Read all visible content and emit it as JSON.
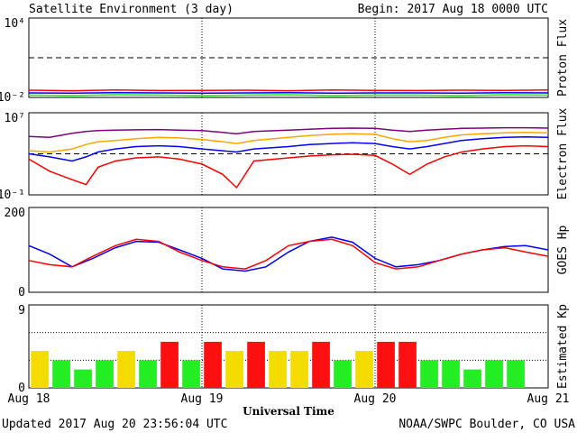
{
  "header": {
    "title": "Satellite Environment (3 day)",
    "begin": "Begin:  2017 Aug 18 0000 UTC"
  },
  "footer": {
    "updated": "Updated 2017 Aug 20 23:56:04 UTC",
    "credit": "NOAA/SWPC Boulder, CO USA"
  },
  "x_axis": {
    "title": "Universal Time",
    "ticks": [
      "Aug 18",
      "Aug 19",
      "Aug 20",
      "Aug 21"
    ]
  },
  "colors": {
    "red": "#ff0000",
    "blue": "#0000ff",
    "green": "#00ff00",
    "orange": "#ffa500",
    "purple": "#800080",
    "kp_yellow": "#f5dc00",
    "kp_green": "#22ee22",
    "kp_red": "#ff1010"
  },
  "chart_data": [
    {
      "type": "line",
      "name": "proton-flux",
      "ylabel": "Proton Flux",
      "scale": "log",
      "ylim": [
        0.01,
        10000
      ],
      "tick_labels": [
        "10⁴",
        "10⁻²"
      ],
      "threshold": 10,
      "x": [
        0,
        0.25,
        0.5,
        0.75,
        1,
        1.25,
        1.5,
        1.75,
        2,
        2.25,
        2.5,
        2.75,
        3
      ],
      "series": [
        {
          "color": "red",
          "values": [
            0.035,
            0.032,
            0.036,
            0.033,
            0.034,
            0.035,
            0.032,
            0.036,
            0.034,
            0.033,
            0.035,
            0.034,
            0.036
          ]
        },
        {
          "color": "blue",
          "values": [
            0.022,
            0.021,
            0.023,
            0.022,
            0.021,
            0.022,
            0.023,
            0.021,
            0.022,
            0.022,
            0.021,
            0.023,
            0.022
          ]
        },
        {
          "color": "green",
          "values": [
            0.015,
            0.014,
            0.016,
            0.015,
            0.014,
            0.015,
            0.016,
            0.014,
            0.015,
            0.015,
            0.014,
            0.016,
            0.015
          ]
        }
      ]
    },
    {
      "type": "line",
      "name": "electron-flux",
      "ylabel": "Electron Flux",
      "scale": "log",
      "ylim": [
        0.1,
        10000000
      ],
      "tick_labels": [
        "10⁷",
        "10⁻¹"
      ],
      "threshold": 1000,
      "x": [
        0,
        0.12,
        0.25,
        0.33,
        0.4,
        0.5,
        0.62,
        0.75,
        0.87,
        1,
        1.12,
        1.2,
        1.3,
        1.5,
        1.62,
        1.75,
        1.87,
        2,
        2.1,
        2.2,
        2.3,
        2.4,
        2.5,
        2.62,
        2.75,
        2.87,
        3
      ],
      "series": [
        {
          "color": "purple",
          "values": [
            50000,
            40000,
            100000,
            150000,
            180000,
            200000,
            220000,
            230000,
            200000,
            180000,
            120000,
            90000,
            150000,
            200000,
            250000,
            300000,
            320000,
            300000,
            200000,
            150000,
            200000,
            250000,
            300000,
            320000,
            350000,
            350000,
            320000
          ]
        },
        {
          "color": "orange",
          "values": [
            2000,
            1500,
            3000,
            8000,
            15000,
            20000,
            30000,
            40000,
            35000,
            25000,
            15000,
            10000,
            20000,
            40000,
            60000,
            80000,
            90000,
            80000,
            30000,
            15000,
            20000,
            40000,
            70000,
            90000,
            110000,
            120000,
            110000
          ]
        },
        {
          "color": "blue",
          "values": [
            1000,
            500,
            200,
            500,
            1500,
            3000,
            5000,
            6000,
            5000,
            3000,
            2000,
            1500,
            3000,
            5000,
            8000,
            10000,
            12000,
            10000,
            5000,
            3000,
            5000,
            10000,
            20000,
            30000,
            40000,
            45000,
            40000
          ]
        },
        {
          "color": "red",
          "values": [
            300,
            20,
            3,
            1,
            50,
            200,
            400,
            500,
            300,
            100,
            10,
            0.5,
            200,
            400,
            600,
            800,
            900,
            700,
            100,
            10,
            100,
            500,
            1500,
            3000,
            5000,
            6000,
            5000
          ]
        }
      ]
    },
    {
      "type": "line",
      "name": "goes-hp",
      "ylabel": "GOES Hp",
      "scale": "linear",
      "ylim": [
        0,
        200
      ],
      "tick_labels": [
        "200",
        "0"
      ],
      "x": [
        0,
        0.12,
        0.25,
        0.37,
        0.5,
        0.62,
        0.75,
        0.87,
        1,
        1.12,
        1.25,
        1.37,
        1.5,
        1.62,
        1.75,
        1.87,
        2,
        2.12,
        2.25,
        2.37,
        2.5,
        2.62,
        2.75,
        2.87,
        3
      ],
      "series": [
        {
          "color": "blue",
          "values": [
            110,
            90,
            60,
            80,
            105,
            120,
            118,
            100,
            80,
            55,
            50,
            60,
            95,
            120,
            130,
            118,
            80,
            60,
            65,
            75,
            90,
            100,
            108,
            110,
            100
          ]
        },
        {
          "color": "red",
          "values": [
            75,
            65,
            60,
            85,
            110,
            125,
            120,
            95,
            75,
            60,
            55,
            75,
            110,
            120,
            125,
            110,
            70,
            55,
            60,
            75,
            90,
            100,
            105,
            95,
            85
          ]
        }
      ]
    },
    {
      "type": "bar",
      "name": "estimated-kp",
      "ylabel": "Estimated Kp",
      "ylim": [
        0,
        9
      ],
      "tick_labels": [
        "9",
        "0"
      ],
      "threshold": 5,
      "values": [
        4,
        3,
        2,
        3,
        4,
        3,
        5,
        3,
        5,
        4,
        5,
        4,
        4,
        5,
        3,
        4,
        5,
        5,
        3,
        3,
        2,
        3,
        3
      ],
      "bar_colors": [
        "kp_yellow",
        "kp_green",
        "kp_green",
        "kp_green",
        "kp_yellow",
        "kp_green",
        "kp_red",
        "kp_green",
        "kp_red",
        "kp_yellow",
        "kp_red",
        "kp_yellow",
        "kp_yellow",
        "kp_red",
        "kp_green",
        "kp_yellow",
        "kp_red",
        "kp_red",
        "kp_green",
        "kp_green",
        "kp_green",
        "kp_green",
        "kp_green"
      ]
    }
  ]
}
